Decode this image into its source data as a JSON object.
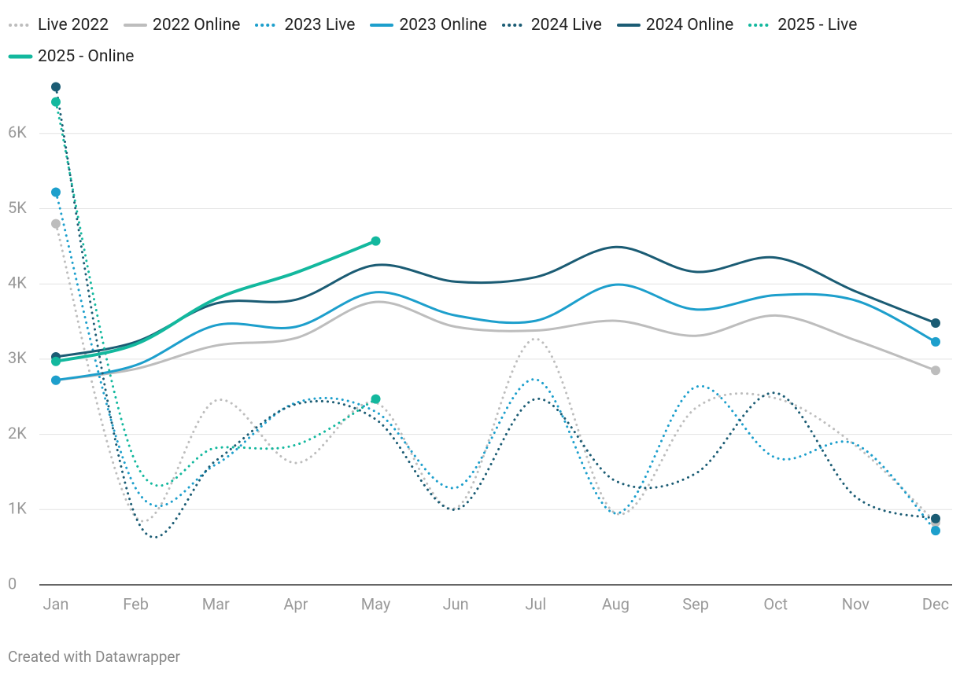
{
  "chart_data": {
    "type": "line",
    "categories": [
      "Jan",
      "Feb",
      "Mar",
      "Apr",
      "May",
      "Jun",
      "Jul",
      "Aug",
      "Sep",
      "Oct",
      "Nov",
      "Dec"
    ],
    "series": [
      {
        "name": "Live 2022",
        "color": "#bdbdbd",
        "style": "dotted",
        "values": [
          4800,
          900,
          2450,
          1620,
          2420,
          1020,
          3270,
          950,
          2350,
          2480,
          1850,
          830
        ]
      },
      {
        "name": "2022 Online",
        "color": "#bdbdbd",
        "style": "solid",
        "values": [
          2720,
          2870,
          3180,
          3280,
          3760,
          3430,
          3380,
          3510,
          3310,
          3580,
          3250,
          2850
        ]
      },
      {
        "name": "2023 Live",
        "color": "#1d9fcc",
        "style": "dotted",
        "values": [
          5220,
          1280,
          1600,
          2420,
          2300,
          1290,
          2730,
          950,
          2630,
          1690,
          1870,
          720
        ]
      },
      {
        "name": "2023 Online",
        "color": "#1d9fcc",
        "style": "solid",
        "values": [
          2720,
          2920,
          3450,
          3430,
          3890,
          3580,
          3510,
          3990,
          3660,
          3850,
          3780,
          3230
        ]
      },
      {
        "name": "2024 Live",
        "color": "#1b5c74",
        "style": "dotted",
        "values": [
          6620,
          900,
          1650,
          2400,
          2200,
          1000,
          2470,
          1380,
          1480,
          2550,
          1170,
          880
        ]
      },
      {
        "name": "2024 Online",
        "color": "#1b5c74",
        "style": "solid",
        "values": [
          3030,
          3230,
          3740,
          3790,
          4250,
          4030,
          4090,
          4490,
          4160,
          4350,
          3900,
          3480
        ]
      },
      {
        "name": "2025 - Live",
        "color": "#13b89e",
        "style": "dotted",
        "values": [
          6420,
          1620,
          1820,
          1860,
          2470,
          null,
          null,
          null,
          null,
          null,
          null,
          null
        ]
      },
      {
        "name": "2025 - Online",
        "color": "#13b89e",
        "style": "solid",
        "values": [
          2970,
          3200,
          3800,
          4150,
          4570,
          null,
          null,
          null,
          null,
          null,
          null,
          null
        ]
      }
    ],
    "ylim": [
      0,
      6800
    ],
    "yticks": [
      0,
      {
        "value": 1000,
        "label": "1K"
      },
      {
        "value": 2000,
        "label": "2K"
      },
      {
        "value": 3000,
        "label": "3K"
      },
      {
        "value": 4000,
        "label": "4K"
      },
      {
        "value": 5000,
        "label": "5K"
      },
      {
        "value": 6000,
        "label": "6K"
      }
    ],
    "grid": true,
    "credit": "Created with Datawrapper"
  }
}
